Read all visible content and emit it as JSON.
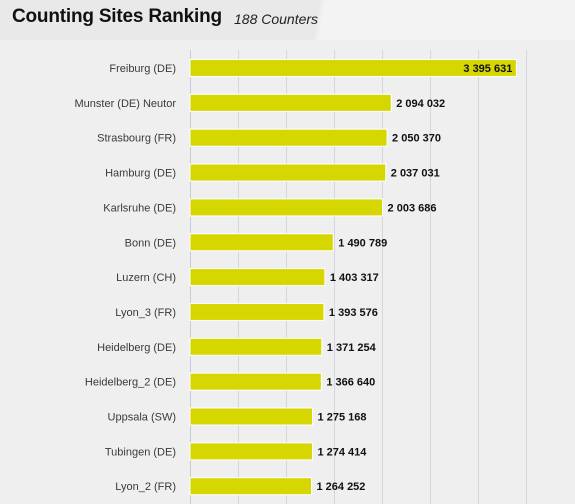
{
  "header": {
    "title": "Counting Sites Ranking",
    "subtitle": "188 Counters"
  },
  "colors": {
    "bar": "#d6d600",
    "grid": "#d3d7df",
    "background": "#efefef"
  },
  "chart_data": {
    "type": "bar",
    "orientation": "horizontal",
    "title": "Counting Sites Ranking",
    "subtitle": "188 Counters",
    "categories": [
      "Freiburg (DE)",
      "Munster (DE) Neutor",
      "Strasbourg (FR)",
      "Hamburg (DE)",
      "Karlsruhe (DE)",
      "Bonn (DE)",
      "Luzern (CH)",
      "Lyon_3 (FR)",
      "Heidelberg (DE)",
      "Heidelberg_2 (DE)",
      "Uppsala (SW)",
      "Tubingen (DE)",
      "Lyon_2 (FR)"
    ],
    "values": [
      3395631,
      2094032,
      2050370,
      2037031,
      2003686,
      1490789,
      1403317,
      1393576,
      1371254,
      1366640,
      1275168,
      1274414,
      1264252
    ],
    "value_labels": [
      "3 395 631",
      "2 094 032",
      "2 050 370",
      "2 037 031",
      "2 003 686",
      "1 490 789",
      "1 403 317",
      "1 393 576",
      "1 371 254",
      "1 366 640",
      "1 275 168",
      "1 274 414",
      "1 264 252"
    ],
    "xlim": [
      0,
      3850000
    ],
    "grid_step": 500000,
    "grid": true,
    "legend": "none"
  }
}
